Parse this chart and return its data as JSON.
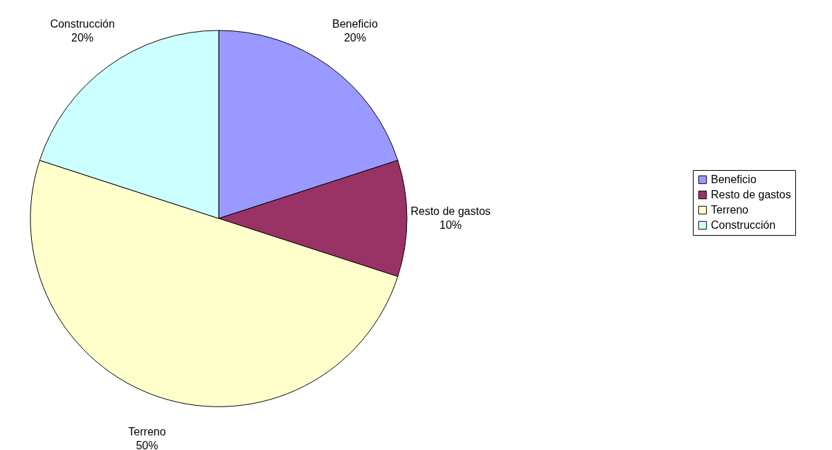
{
  "chart_data": {
    "type": "pie",
    "categories": [
      "Beneficio",
      "Resto de gastos",
      "Terreno",
      "Construcción"
    ],
    "values": [
      20,
      10,
      50,
      20
    ],
    "colors": [
      "#9999ff",
      "#993366",
      "#ffffcc",
      "#ccffff"
    ],
    "value_labels": [
      "20%",
      "10%",
      "50%",
      "20%"
    ],
    "legend": "right"
  }
}
